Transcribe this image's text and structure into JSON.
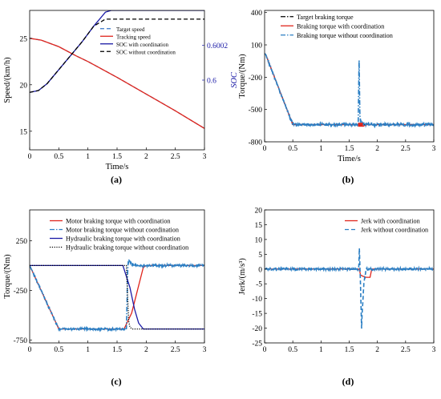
{
  "figure": {
    "panels": [
      {
        "id": "a",
        "label": "(a)",
        "xlabel": "Time/s",
        "ylabel": "Speed/(km/h)",
        "y2label": "SOC",
        "legend": [
          "Target speed",
          "Tracking speed",
          "SOC with coordination",
          "SOC without coordination"
        ]
      },
      {
        "id": "b",
        "label": "(b)",
        "xlabel": "Time/s",
        "ylabel": "Torque/(Nm)",
        "legend": [
          "Target braking torque",
          "Braking torque with coordination",
          "Braking torque without coordination"
        ]
      },
      {
        "id": "c",
        "label": "(c)",
        "xlabel": "Time/s",
        "ylabel": "Torque/(Nm)",
        "legend": [
          "Motor braking torque with coordination",
          "Motor braking torque without coordination",
          "Hydraulic braking torque with coordination",
          "Hydraulic braking torque without coordination"
        ]
      },
      {
        "id": "d",
        "label": "(d)",
        "xlabel": "Time/s",
        "ylabel": "Jerk/(m/s³)",
        "legend": [
          "Jerk with coordination",
          "Jerk without coordination"
        ]
      }
    ]
  },
  "chart_data": [
    {
      "type": "line",
      "panel": "a",
      "xlabel": "Time/s",
      "ylabel": "Speed/(km/h)",
      "y2label": "SOC",
      "xlim": [
        0,
        3
      ],
      "ylim": [
        13,
        28
      ],
      "y2lim": [
        0.5996,
        0.6004
      ],
      "xticks": [
        "0",
        "0.5",
        "1",
        "1.5",
        "2",
        "2.5",
        "3"
      ],
      "yticks": [
        "15",
        "20",
        "25"
      ],
      "y2ticks": [
        "0.6",
        "0.6002"
      ],
      "legend_position": "top-right",
      "series": [
        {
          "name": "Target speed",
          "axis": "left",
          "color": "#3a78c9",
          "dash": "dashed",
          "x": [
            0,
            0.2,
            0.5,
            0.8,
            1.0,
            1.5,
            2.0,
            2.5,
            3.0
          ],
          "y": [
            25,
            24.8,
            24.1,
            23.1,
            22.5,
            20.8,
            19.0,
            17.2,
            15.3
          ]
        },
        {
          "name": "Tracking speed",
          "axis": "left",
          "color": "#e0251c",
          "dash": "solid",
          "x": [
            0,
            0.2,
            0.5,
            0.8,
            1.0,
            1.5,
            2.0,
            2.5,
            3.0
          ],
          "y": [
            25,
            24.8,
            24.1,
            23.1,
            22.5,
            20.8,
            19.0,
            17.2,
            15.3
          ]
        },
        {
          "name": "SOC with coordination",
          "axis": "right",
          "color": "#1a1aa6",
          "dash": "solid",
          "x": [
            0,
            0.15,
            0.3,
            0.5,
            0.7,
            0.9,
            1.1,
            1.3,
            1.4,
            1.5,
            2.0,
            2.5,
            3.0
          ],
          "y": [
            0.59993,
            0.59994,
            0.59998,
            0.60006,
            0.60014,
            0.60022,
            0.60031,
            0.60039,
            0.6004,
            0.6004,
            0.6004,
            0.6004,
            0.6004
          ]
        },
        {
          "name": "SOC without coordination",
          "axis": "right",
          "color": "#000000",
          "dash": "dashed",
          "x": [
            0,
            0.15,
            0.3,
            0.5,
            0.7,
            0.9,
            1.1,
            1.3,
            1.7,
            2.0,
            2.5,
            3.0
          ],
          "y": [
            0.59993,
            0.59994,
            0.59998,
            0.60006,
            0.60014,
            0.60022,
            0.60031,
            0.60035,
            0.60035,
            0.60035,
            0.60035,
            0.60035
          ]
        }
      ]
    },
    {
      "type": "line",
      "panel": "b",
      "xlabel": "Time/s",
      "ylabel": "Torque/(Nm)",
      "xlim": [
        0,
        3
      ],
      "ylim": [
        -800,
        420
      ],
      "xticks": [
        "0",
        "0.5",
        "1",
        "1.5",
        "2",
        "2.5",
        "3"
      ],
      "yticks": [
        "-800",
        "-500",
        "-200",
        "100",
        "400"
      ],
      "legend_position": "top-right",
      "series": [
        {
          "name": "Target braking torque",
          "color": "#000000",
          "dash": "dashdot",
          "x": [
            0,
            0.02,
            0.5,
            3.0
          ],
          "y": [
            20,
            10,
            -640,
            -640
          ]
        },
        {
          "name": "Braking torque with coordination",
          "color": "#e0251c",
          "dash": "solid",
          "x": [
            0,
            0.02,
            0.5,
            1.66,
            1.7,
            1.75,
            1.8,
            3.0
          ],
          "y": [
            20,
            10,
            -640,
            -640,
            -650,
            -655,
            -640,
            -640
          ]
        },
        {
          "name": "Braking torque without coordination",
          "color": "#2b7fc4",
          "dash": "dashdot",
          "x": [
            0,
            0.02,
            0.5,
            1.66,
            1.675,
            1.69,
            1.7,
            1.72,
            1.75,
            1.8,
            3.0
          ],
          "y": [
            20,
            10,
            -640,
            -640,
            0,
            -560,
            -600,
            -620,
            -635,
            -640,
            -640
          ]
        }
      ]
    },
    {
      "type": "line",
      "panel": "c",
      "xlabel": "",
      "ylabel": "Torque/(Nm)",
      "xlim": [
        0,
        3
      ],
      "ylim": [
        -780,
        560
      ],
      "xticks": [
        "0",
        "0.5",
        "1",
        "1.5",
        "2",
        "2.5",
        "3"
      ],
      "yticks": [
        "-750",
        "-250",
        "250"
      ],
      "legend_position": "top-right",
      "series": [
        {
          "name": "Motor braking torque with coordination",
          "color": "#e0251c",
          "dash": "solid",
          "x": [
            0,
            0.5,
            1.62,
            1.75,
            1.85,
            1.95,
            2.0,
            3.0
          ],
          "y": [
            0,
            -640,
            -640,
            -480,
            -250,
            -20,
            0,
            0
          ]
        },
        {
          "name": "Motor braking torque without coordination",
          "color": "#2b7fc4",
          "dash": "dashdot",
          "x": [
            0,
            0.5,
            1.66,
            1.685,
            1.7,
            1.75,
            1.8,
            3.0
          ],
          "y": [
            0,
            -640,
            -640,
            0,
            50,
            20,
            0,
            0
          ]
        },
        {
          "name": "Hydraulic braking torque with coordination",
          "color": "#1a1aa6",
          "dash": "solid",
          "x": [
            0,
            1.6,
            1.72,
            1.8,
            1.87,
            1.95,
            2.0,
            3.0
          ],
          "y": [
            0,
            0,
            -220,
            -440,
            -580,
            -640,
            -640,
            -640
          ]
        },
        {
          "name": "Hydraulic braking torque without coordination",
          "color": "#000000",
          "dash": "dotted",
          "x": [
            0,
            1.66,
            1.68,
            1.7,
            1.72,
            1.76,
            1.8,
            3.0
          ],
          "y": [
            0,
            0,
            -300,
            -560,
            -620,
            -640,
            -640,
            -640
          ]
        }
      ]
    },
    {
      "type": "line",
      "panel": "d",
      "xlabel": "",
      "ylabel": "Jerk/(m/s³)",
      "xlim": [
        0,
        3
      ],
      "ylim": [
        -25,
        20
      ],
      "xticks": [
        "0",
        "0.5",
        "1",
        "1.5",
        "2",
        "2.5",
        "3"
      ],
      "yticks": [
        "-25",
        "-20",
        "-15",
        "-10",
        "-5",
        "0",
        "5",
        "10",
        "15",
        "20"
      ],
      "legend_position": "top-right",
      "series": [
        {
          "name": "Jerk with coordination",
          "color": "#e0251c",
          "dash": "solid",
          "x": [
            0,
            0.5,
            1.68,
            1.7,
            1.75,
            1.8,
            1.87,
            1.9,
            3.0
          ],
          "y": [
            0,
            0,
            0,
            -2,
            -2.5,
            -2.8,
            -2.8,
            0,
            0
          ]
        },
        {
          "name": "Jerk without coordination",
          "color": "#2b7fc4",
          "dash": "dashed",
          "x": [
            0,
            0.5,
            1.67,
            1.68,
            1.7,
            1.72,
            1.73,
            1.76,
            1.8,
            3.0
          ],
          "y": [
            0,
            0,
            0,
            7,
            -5,
            -20,
            -15,
            -5,
            0,
            0
          ]
        }
      ]
    }
  ]
}
